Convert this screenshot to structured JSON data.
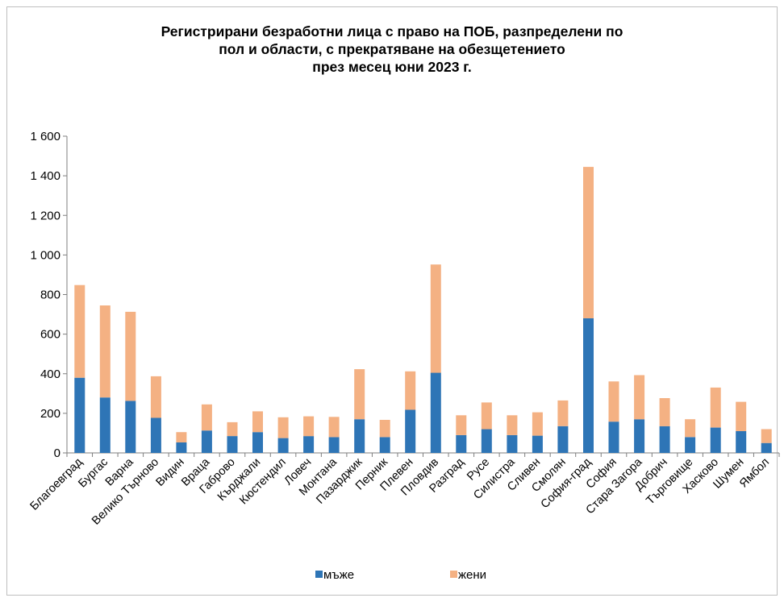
{
  "chart_data": {
    "type": "bar",
    "stacked": true,
    "title_lines": [
      "Регистрирани безработни лица с право на ПОБ, разпределени по",
      "пол и области, с прекратяване на обезщетението",
      "през месец юни 2023 г."
    ],
    "ylim": [
      0,
      1600
    ],
    "yticks": [
      0,
      200,
      400,
      600,
      800,
      1000,
      1200,
      1400,
      1600
    ],
    "ytick_labels": [
      "0",
      "200",
      "400",
      "600",
      "800",
      "1 000",
      "1 200",
      "1 400",
      "1 600"
    ],
    "categories": [
      "Благоевград",
      "Бургас",
      "Варна",
      "Велико Търново",
      "Видин",
      "Враца",
      "Габрово",
      "Кърджали",
      "Кюстендил",
      "Ловеч",
      "Монтана",
      "Пазарджик",
      "Перник",
      "Плевен",
      "Пловдив",
      "Разград",
      "Русе",
      "Силистра",
      "Сливен",
      "Смолян",
      "София-град",
      "София",
      "Стара Загора",
      "Добрич",
      "Търговище",
      "Хасково",
      "Шумен",
      "Ямбол"
    ],
    "series": [
      {
        "name": "мъже",
        "color": "#2e75b6",
        "values": [
          380,
          280,
          263,
          177,
          53,
          113,
          85,
          105,
          75,
          85,
          80,
          170,
          80,
          218,
          405,
          90,
          120,
          90,
          87,
          135,
          680,
          158,
          170,
          135,
          80,
          128,
          110,
          50
        ]
      },
      {
        "name": "жени",
        "color": "#f4b183",
        "values": [
          468,
          465,
          450,
          210,
          52,
          132,
          70,
          105,
          105,
          100,
          102,
          253,
          87,
          194,
          547,
          100,
          135,
          100,
          118,
          130,
          765,
          203,
          223,
          142,
          90,
          202,
          148,
          70
        ]
      }
    ],
    "grid": false,
    "legend_position": "bottom"
  }
}
